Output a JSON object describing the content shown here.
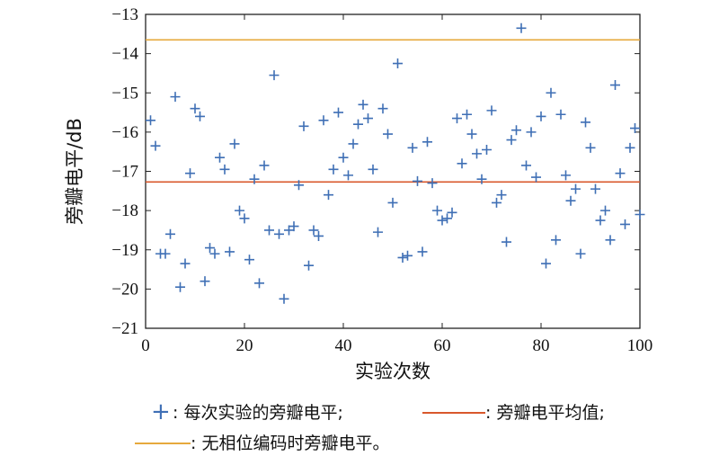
{
  "chart_data": {
    "type": "scatter",
    "title": "",
    "xlabel": "实验次数",
    "ylabel": "旁瓣电平/dB",
    "xlim": [
      0,
      100
    ],
    "ylim": [
      -21,
      -13
    ],
    "xticks": [
      "0",
      "20",
      "40",
      "60",
      "80",
      "100"
    ],
    "yticks": [
      "−13",
      "−14",
      "−15",
      "−16",
      "−17",
      "−18",
      "−19",
      "−20",
      "−21"
    ],
    "series": [
      {
        "name": "每次实验的旁瓣电平",
        "marker": "+",
        "color": "#3f6fb5",
        "x": [
          1,
          2,
          3,
          4,
          5,
          6,
          7,
          8,
          9,
          10,
          11,
          12,
          13,
          14,
          15,
          16,
          17,
          18,
          19,
          20,
          21,
          22,
          23,
          24,
          25,
          26,
          27,
          28,
          29,
          30,
          31,
          32,
          33,
          34,
          35,
          36,
          37,
          38,
          39,
          40,
          41,
          42,
          43,
          44,
          45,
          46,
          47,
          48,
          49,
          50,
          51,
          52,
          53,
          54,
          55,
          56,
          57,
          58,
          59,
          60,
          61,
          62,
          63,
          64,
          65,
          66,
          67,
          68,
          69,
          70,
          71,
          72,
          73,
          74,
          75,
          76,
          77,
          78,
          79,
          80,
          81,
          82,
          83,
          84,
          85,
          86,
          87,
          88,
          89,
          90,
          91,
          92,
          93,
          94,
          95,
          96,
          97,
          98,
          99,
          100
        ],
        "y": [
          -15.7,
          -16.35,
          -19.1,
          -19.1,
          -18.6,
          -15.1,
          -19.95,
          -19.35,
          -17.05,
          -15.4,
          -15.6,
          -19.8,
          -18.95,
          -19.1,
          -16.65,
          -16.95,
          -19.05,
          -16.3,
          -18.0,
          -18.2,
          -19.25,
          -17.2,
          -19.85,
          -16.85,
          -18.5,
          -14.55,
          -18.6,
          -20.25,
          -18.5,
          -18.4,
          -17.35,
          -15.85,
          -19.4,
          -18.5,
          -18.65,
          -15.7,
          -17.6,
          -16.95,
          -15.5,
          -16.65,
          -17.1,
          -16.3,
          -15.8,
          -15.3,
          -15.65,
          -16.95,
          -18.55,
          -15.4,
          -16.05,
          -17.8,
          -14.25,
          -19.2,
          -19.15,
          -16.4,
          -17.25,
          -19.05,
          -16.25,
          -17.3,
          -18.0,
          -18.25,
          -18.2,
          -18.05,
          -15.65,
          -16.8,
          -15.55,
          -16.05,
          -16.55,
          -17.2,
          -16.45,
          -15.45,
          -17.8,
          -17.6,
          -18.8,
          -16.2,
          -15.95,
          -13.35,
          -16.85,
          -16.0,
          -17.15,
          -15.6,
          -19.35,
          -15.0,
          -18.75,
          -15.55,
          -17.1,
          -17.75,
          -17.45,
          -19.1,
          -15.75,
          -16.4,
          -17.45,
          -18.25,
          -18.0,
          -18.75,
          -14.8,
          -17.05,
          -18.35,
          -16.4,
          -15.9,
          -18.1
        ]
      },
      {
        "name": "旁瓣电平均值",
        "type": "hline",
        "color": "#d9582c",
        "y": -17.27
      },
      {
        "name": "无相位编码时旁瓣电平",
        "type": "hline",
        "color": "#e6a93c",
        "y": -13.65
      }
    ],
    "grid": false,
    "legend_position": "bottom"
  },
  "legend": {
    "item1": ": 每次实验的旁瓣电平;",
    "item2": ": 旁瓣电平均值;",
    "item3": ": 无相位编码时旁瓣电平。",
    "plus_symbol": "+"
  }
}
